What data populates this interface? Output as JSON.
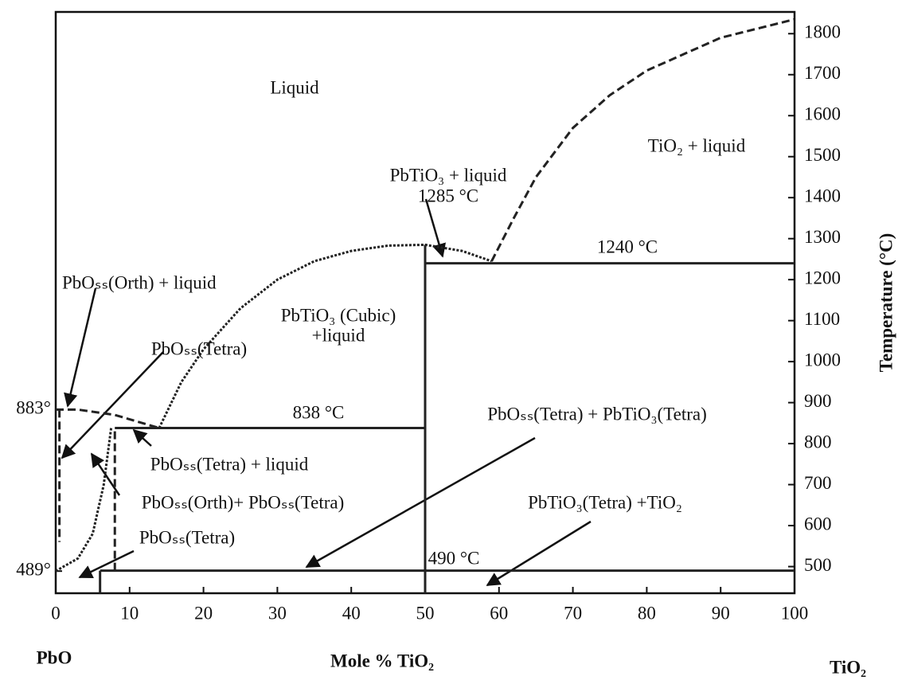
{
  "chart_data": {
    "type": "phase-diagram",
    "x_label": "Mole % TiO₂",
    "y_label": "Temperature (°C)",
    "left_end_label": "PbO",
    "right_end_label": "TiO₂",
    "xlim": [
      0,
      100
    ],
    "xticks": [
      0,
      10,
      20,
      30,
      40,
      50,
      60,
      70,
      80,
      90,
      100
    ],
    "ylim": [
      435,
      1853
    ],
    "yticks": [
      500,
      600,
      700,
      800,
      900,
      1000,
      1100,
      1200,
      1300,
      1400,
      1500,
      1600,
      1700,
      1800
    ],
    "left_ticks": [
      {
        "value": 883,
        "label": "883°"
      },
      {
        "value": 489,
        "label": "489°"
      }
    ],
    "color": "#222222",
    "boundaries": [
      {
        "x": [
          59,
          62,
          65,
          70,
          75,
          80,
          90,
          100
        ],
        "y": [
          1245,
          1350,
          1450,
          1570,
          1650,
          1710,
          1790,
          1835
        ],
        "dash": "dashed"
      },
      {
        "x": [
          14,
          17,
          20,
          25,
          30,
          35,
          40,
          45,
          50,
          55,
          59
        ],
        "y": [
          838,
          950,
          1030,
          1130,
          1200,
          1245,
          1270,
          1283,
          1285,
          1270,
          1245
        ],
        "dash": "dotted"
      },
      {
        "x": [
          50,
          100
        ],
        "y": [
          1240,
          1240
        ],
        "dash": "solid"
      },
      {
        "x": [
          8,
          50
        ],
        "y": [
          838,
          838
        ],
        "dash": "solid"
      },
      {
        "x": [
          6,
          100
        ],
        "y": [
          490,
          490
        ],
        "dash": "solid"
      },
      {
        "x": [
          50,
          50
        ],
        "y": [
          435,
          1285
        ],
        "dash": "solid"
      },
      {
        "x": [
          0,
          3,
          8,
          14
        ],
        "y": [
          883,
          883,
          870,
          838
        ],
        "dash": "dashed"
      },
      {
        "x": [
          0.5,
          0.5
        ],
        "y": [
          883,
          560
        ],
        "dash": "dashed"
      },
      {
        "x": [
          0,
          3,
          5,
          6.5,
          7.5
        ],
        "y": [
          489,
          520,
          580,
          700,
          838
        ],
        "dash": "dotted"
      },
      {
        "x": [
          6,
          6
        ],
        "y": [
          435,
          490
        ],
        "dash": "solid"
      },
      {
        "x": [
          8,
          8
        ],
        "y": [
          490,
          838
        ],
        "dash": "dashed"
      }
    ],
    "labels": [
      "Liquid",
      "TiO₂ + liquid",
      "PbTiO₃ + liquid",
      "1285 °C",
      "1240 °C",
      "PbOₛₛ(Orth) + liquid",
      "PbTiO₃ (Cubic)",
      "+liquid",
      "PbOₛₛ(Tetra)",
      "838 °C",
      "PbOₛₛ(Tetra) + PbTiO₃(Tetra)",
      "PbOₛₛ(Tetra) + liquid",
      "PbOₛₛ(Orth)+ PbOₛₛ(Tetra)",
      "PbTiO₃(Tetra) +TiO₂",
      "PbOₛₛ(Tetra)",
      "490 °C"
    ]
  }
}
